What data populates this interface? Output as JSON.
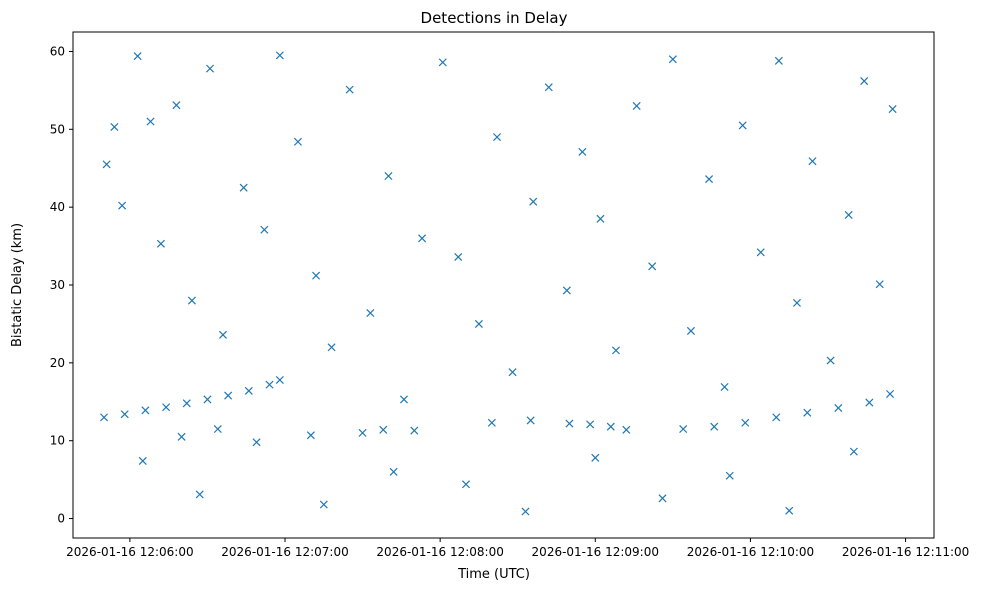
{
  "chart_data": {
    "type": "scatter",
    "title": "Detections in Delay",
    "xlabel": "Time (UTC)",
    "ylabel": "Bistatic Delay (km)",
    "xlim": [
      "2026-01-16 12:05:38",
      "2026-01-16 12:11:11"
    ],
    "ylim": [
      -2.5,
      62.5
    ],
    "x_ticks": [
      "2026-01-16 12:06:00",
      "2026-01-16 12:07:00",
      "2026-01-16 12:08:00",
      "2026-01-16 12:09:00",
      "2026-01-16 12:10:00",
      "2026-01-16 12:11:00"
    ],
    "y_ticks": [
      0,
      10,
      20,
      30,
      40,
      50,
      60
    ],
    "marker": "x",
    "color": "#1f77b4",
    "grid": false,
    "series": [
      {
        "values": [
          [
            "2026-01-16 12:05:50",
            13.0
          ],
          [
            "2026-01-16 12:05:58",
            13.4
          ],
          [
            "2026-01-16 12:06:06",
            13.9
          ],
          [
            "2026-01-16 12:06:14",
            14.3
          ],
          [
            "2026-01-16 12:06:22",
            14.8
          ],
          [
            "2026-01-16 12:06:30",
            15.3
          ],
          [
            "2026-01-16 12:06:38",
            15.8
          ],
          [
            "2026-01-16 12:06:46",
            16.4
          ],
          [
            "2026-01-16 12:06:54",
            17.2
          ],
          [
            "2026-01-16 12:06:58",
            17.8
          ],
          [
            "2026-01-16 12:06:20",
            10.5
          ],
          [
            "2026-01-16 12:06:34",
            11.5
          ],
          [
            "2026-01-16 12:07:10",
            10.7
          ],
          [
            "2026-01-16 12:07:30",
            11.0
          ],
          [
            "2026-01-16 12:07:50",
            11.3
          ],
          [
            "2026-01-16 12:07:38",
            11.4
          ],
          [
            "2026-01-16 12:08:20",
            12.3
          ],
          [
            "2026-01-16 12:08:35",
            12.6
          ],
          [
            "2026-01-16 12:08:50",
            12.2
          ],
          [
            "2026-01-16 12:08:58",
            12.1
          ],
          [
            "2026-01-16 12:09:06",
            11.8
          ],
          [
            "2026-01-16 12:09:12",
            11.4
          ],
          [
            "2026-01-16 12:09:34",
            11.5
          ],
          [
            "2026-01-16 12:09:46",
            11.8
          ],
          [
            "2026-01-16 12:09:58",
            12.3
          ],
          [
            "2026-01-16 12:10:10",
            13.0
          ],
          [
            "2026-01-16 12:10:22",
            13.6
          ],
          [
            "2026-01-16 12:10:34",
            14.2
          ],
          [
            "2026-01-16 12:10:46",
            14.9
          ],
          [
            "2026-01-16 12:10:54",
            16.0
          ],
          [
            "2026-01-16 12:05:51",
            45.5
          ],
          [
            "2026-01-16 12:05:54",
            50.3
          ],
          [
            "2026-01-16 12:05:57",
            40.2
          ],
          [
            "2026-01-16 12:06:03",
            59.4
          ],
          [
            "2026-01-16 12:06:08",
            51.0
          ],
          [
            "2026-01-16 12:06:12",
            35.3
          ],
          [
            "2026-01-16 12:06:18",
            53.1
          ],
          [
            "2026-01-16 12:06:24",
            28.0
          ],
          [
            "2026-01-16 12:06:31",
            57.8
          ],
          [
            "2026-01-16 12:06:36",
            23.6
          ],
          [
            "2026-01-16 12:06:44",
            42.5
          ],
          [
            "2026-01-16 12:06:52",
            37.1
          ],
          [
            "2026-01-16 12:06:58",
            59.5
          ],
          [
            "2026-01-16 12:07:05",
            48.4
          ],
          [
            "2026-01-16 12:07:12",
            31.2
          ],
          [
            "2026-01-16 12:07:18",
            22.0
          ],
          [
            "2026-01-16 12:07:25",
            55.1
          ],
          [
            "2026-01-16 12:07:33",
            26.4
          ],
          [
            "2026-01-16 12:07:40",
            44.0
          ],
          [
            "2026-01-16 12:07:46",
            15.3
          ],
          [
            "2026-01-16 12:07:53",
            36.0
          ],
          [
            "2026-01-16 12:08:01",
            58.6
          ],
          [
            "2026-01-16 12:08:07",
            33.6
          ],
          [
            "2026-01-16 12:08:15",
            25.0
          ],
          [
            "2026-01-16 12:08:22",
            49.0
          ],
          [
            "2026-01-16 12:08:28",
            18.8
          ],
          [
            "2026-01-16 12:08:36",
            40.7
          ],
          [
            "2026-01-16 12:08:42",
            55.4
          ],
          [
            "2026-01-16 12:08:49",
            29.3
          ],
          [
            "2026-01-16 12:08:55",
            47.1
          ],
          [
            "2026-01-16 12:09:02",
            38.5
          ],
          [
            "2026-01-16 12:09:08",
            21.6
          ],
          [
            "2026-01-16 12:09:16",
            53.0
          ],
          [
            "2026-01-16 12:09:22",
            32.4
          ],
          [
            "2026-01-16 12:09:30",
            59.0
          ],
          [
            "2026-01-16 12:09:37",
            24.1
          ],
          [
            "2026-01-16 12:09:44",
            43.6
          ],
          [
            "2026-01-16 12:09:50",
            16.9
          ],
          [
            "2026-01-16 12:09:57",
            50.5
          ],
          [
            "2026-01-16 12:10:04",
            34.2
          ],
          [
            "2026-01-16 12:10:11",
            58.8
          ],
          [
            "2026-01-16 12:10:18",
            27.7
          ],
          [
            "2026-01-16 12:10:24",
            45.9
          ],
          [
            "2026-01-16 12:10:31",
            20.3
          ],
          [
            "2026-01-16 12:10:38",
            39.0
          ],
          [
            "2026-01-16 12:10:44",
            56.2
          ],
          [
            "2026-01-16 12:10:50",
            30.1
          ],
          [
            "2026-01-16 12:10:55",
            52.6
          ],
          [
            "2026-01-16 12:06:05",
            7.4
          ],
          [
            "2026-01-16 12:06:27",
            3.1
          ],
          [
            "2026-01-16 12:06:49",
            9.8
          ],
          [
            "2026-01-16 12:07:15",
            1.8
          ],
          [
            "2026-01-16 12:07:42",
            6.0
          ],
          [
            "2026-01-16 12:08:10",
            4.4
          ],
          [
            "2026-01-16 12:08:33",
            0.9
          ],
          [
            "2026-01-16 12:09:00",
            7.8
          ],
          [
            "2026-01-16 12:09:26",
            2.6
          ],
          [
            "2026-01-16 12:09:52",
            5.5
          ],
          [
            "2026-01-16 12:10:15",
            1.0
          ],
          [
            "2026-01-16 12:10:40",
            8.6
          ]
        ]
      }
    ]
  }
}
